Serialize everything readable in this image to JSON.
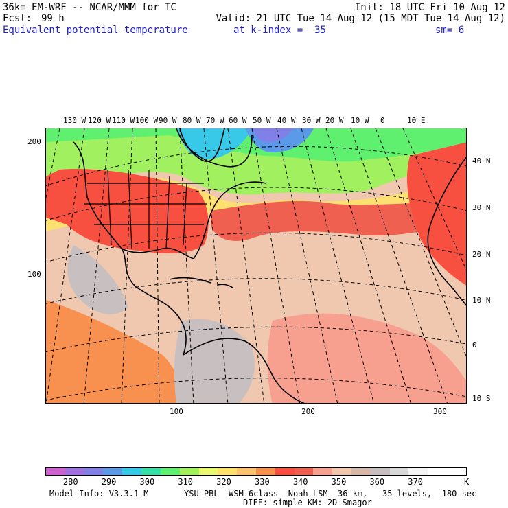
{
  "header": {
    "model": "36km EM-WRF -- NCAR/MMM for TC",
    "init": "Init: 18 UTC Fri 10 Aug 12",
    "fcst_label": "Fcst:",
    "fcst_value": "99 h",
    "valid": "Valid: 21 UTC Tue 14 Aug 12 (15 MDT Tue 14 Aug 12)",
    "field": "Equivalent potential temperature",
    "level": "at k-index =  35",
    "smoothing": "sm= 6"
  },
  "map": {
    "lon_labels": [
      "130 W",
      "120 W",
      "110 W",
      "100 W",
      "90 W",
      "80 W",
      "70 W",
      "60 W",
      "50 W",
      "40 W",
      "30 W",
      "20 W",
      "10 W",
      "0",
      "10 E"
    ],
    "lat_labels": [
      "40 N",
      "30 N",
      "20 N",
      "10 N",
      "0",
      "10 S"
    ],
    "grid_y_labels": [
      "200",
      "100"
    ],
    "grid_x_labels": [
      "100",
      "200",
      "300"
    ]
  },
  "colorbar": {
    "colors": [
      "#d060d0",
      "#a070e0",
      "#8080e8",
      "#5a9ae8",
      "#38c8e8",
      "#38e0a8",
      "#60f070",
      "#a0f060",
      "#e8f870",
      "#fde070",
      "#fbc070",
      "#f89050",
      "#f85040",
      "#f06050",
      "#f8a090",
      "#f0c8b0",
      "#d8b8a8",
      "#c8c0c0",
      "#d8d8d8",
      "#f4f4f4",
      "#ffffff",
      "#ffffff"
    ],
    "labels": [
      "280",
      "290",
      "300",
      "310",
      "320",
      "330",
      "340",
      "350",
      "360",
      "370"
    ],
    "unit": "K"
  },
  "footer": {
    "info": "Model Info: V3.3.1 M",
    "physics": "YSU PBL  WSM 6class  Noah LSM  36 km,   35 levels,  180 sec",
    "diffusion": "DIFF: simple KM: 2D Smagor"
  }
}
